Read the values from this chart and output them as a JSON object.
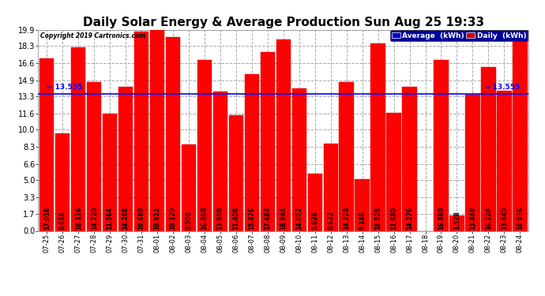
{
  "title": "Daily Solar Energy & Average Production Sun Aug 25 19:33",
  "copyright": "Copyright 2019 Cartronics.com",
  "categories": [
    "07-25",
    "07-26",
    "07-27",
    "07-28",
    "07-29",
    "07-30",
    "07-31",
    "08-01",
    "08-02",
    "08-03",
    "08-04",
    "08-05",
    "08-06",
    "08-07",
    "08-08",
    "08-09",
    "08-10",
    "08-11",
    "08-12",
    "08-13",
    "08-14",
    "08-15",
    "08-16",
    "08-17",
    "08-18",
    "08-19",
    "08-20",
    "08-21",
    "08-22",
    "08-23",
    "08-24"
  ],
  "values": [
    17.016,
    9.616,
    18.116,
    14.72,
    11.564,
    14.248,
    19.68,
    19.912,
    19.12,
    8.508,
    16.868,
    13.808,
    11.408,
    15.476,
    17.684,
    18.944,
    14.052,
    5.628,
    8.632,
    14.728,
    5.148,
    18.528,
    11.68,
    14.276,
    0.0,
    16.88,
    1.528,
    13.448,
    16.224,
    13.84,
    18.936
  ],
  "average": 13.555,
  "bar_color": "#ff0000",
  "average_color": "#0000ff",
  "ylim": [
    0,
    19.9
  ],
  "yticks": [
    0.0,
    1.7,
    3.3,
    5.0,
    6.6,
    8.3,
    10.0,
    11.6,
    13.3,
    14.9,
    16.6,
    18.3,
    19.9
  ],
  "background_color": "#ffffff",
  "grid_color": "#aaaaaa",
  "title_fontsize": 11,
  "bar_fontsize": 5.5,
  "average_fontsize": 6.5,
  "legend_avg_color": "#0000cc",
  "legend_daily_color": "#cc0000",
  "legend_avg_text": "Average  (kWh)",
  "legend_daily_text": "Daily  (kWh)"
}
